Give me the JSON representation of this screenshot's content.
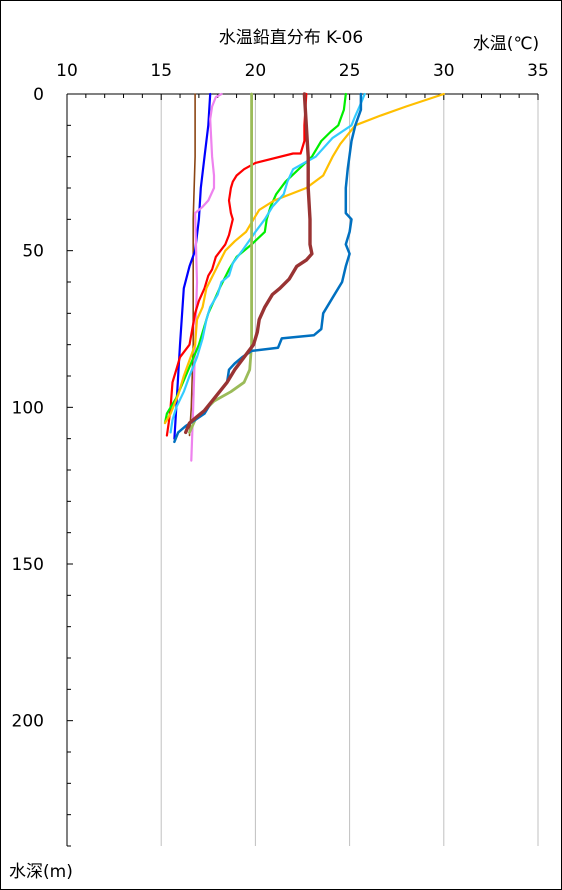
{
  "chart_data": {
    "type": "line",
    "title": "水温鉛直分布 K-06",
    "xlabel": "水温(℃)",
    "ylabel": "水深(m)",
    "xlim": [
      10,
      35
    ],
    "ylim": [
      0,
      240
    ],
    "x_ticks": [
      "10",
      "15",
      "20",
      "25",
      "30",
      "35"
    ],
    "y_ticks": [
      "0",
      "50",
      "100",
      "150",
      "200"
    ],
    "x_axis_position": "top",
    "y_axis_inverted": true,
    "grid": "vertical",
    "legend": "none",
    "series": [
      {
        "color": "#8b4513",
        "stroke": 1.6,
        "points": [
          [
            16.8,
            0
          ],
          [
            16.8,
            20
          ],
          [
            16.7,
            40
          ],
          [
            16.7,
            60
          ],
          [
            16.7,
            80
          ],
          [
            16.6,
            100
          ],
          [
            16.5,
            109
          ]
        ]
      },
      {
        "color": "#0000ff",
        "stroke": 2.2,
        "points": [
          [
            17.6,
            0
          ],
          [
            17.5,
            10
          ],
          [
            17.3,
            20
          ],
          [
            17.1,
            30
          ],
          [
            17.0,
            40
          ],
          [
            16.8,
            50
          ],
          [
            16.5,
            55
          ],
          [
            16.2,
            62
          ],
          [
            16.0,
            80
          ],
          [
            15.8,
            100
          ],
          [
            15.7,
            110
          ]
        ]
      },
      {
        "color": "#ee82ee",
        "stroke": 2.2,
        "points": [
          [
            18.2,
            0
          ],
          [
            17.9,
            1
          ],
          [
            17.7,
            4
          ],
          [
            17.6,
            8
          ],
          [
            17.7,
            20
          ],
          [
            17.8,
            26
          ],
          [
            17.8,
            30
          ],
          [
            17.5,
            34
          ],
          [
            17.2,
            36
          ],
          [
            16.8,
            38
          ],
          [
            16.9,
            60
          ],
          [
            16.8,
            80
          ],
          [
            16.7,
            100
          ],
          [
            16.6,
            117
          ]
        ]
      },
      {
        "color": "#ff0000",
        "stroke": 2.2,
        "points": [
          [
            22.7,
            0
          ],
          [
            22.6,
            10
          ],
          [
            22.6,
            15
          ],
          [
            22.4,
            19
          ],
          [
            22.0,
            19
          ],
          [
            20.0,
            22
          ],
          [
            19.4,
            24
          ],
          [
            19.0,
            26
          ],
          [
            18.8,
            28
          ],
          [
            18.7,
            30
          ],
          [
            18.6,
            34
          ],
          [
            18.7,
            38
          ],
          [
            18.8,
            40
          ],
          [
            18.6,
            45
          ],
          [
            18.4,
            48
          ],
          [
            17.9,
            52
          ],
          [
            17.7,
            56
          ],
          [
            17.5,
            58
          ],
          [
            17.3,
            62
          ],
          [
            17.0,
            66
          ],
          [
            16.8,
            70
          ],
          [
            16.5,
            80
          ],
          [
            16.0,
            84
          ],
          [
            15.8,
            88
          ],
          [
            15.6,
            92
          ],
          [
            15.5,
            100
          ],
          [
            15.4,
            105
          ],
          [
            15.3,
            109
          ]
        ]
      },
      {
        "color": "#00ee00",
        "stroke": 2.2,
        "points": [
          [
            24.8,
            0
          ],
          [
            24.7,
            5
          ],
          [
            24.4,
            10
          ],
          [
            24.0,
            12
          ],
          [
            23.5,
            15
          ],
          [
            23.0,
            20
          ],
          [
            22.3,
            24
          ],
          [
            21.6,
            28
          ],
          [
            21.1,
            32
          ],
          [
            20.8,
            36
          ],
          [
            20.6,
            40
          ],
          [
            20.5,
            44
          ],
          [
            19.8,
            48
          ],
          [
            19.4,
            50
          ],
          [
            19.0,
            52
          ],
          [
            18.6,
            56
          ],
          [
            18.1,
            62
          ],
          [
            17.5,
            70
          ],
          [
            17.0,
            80
          ],
          [
            16.3,
            90
          ],
          [
            15.8,
            97
          ],
          [
            15.3,
            102
          ],
          [
            15.2,
            105
          ]
        ]
      },
      {
        "color": "#ffbf00",
        "stroke": 2.2,
        "points": [
          [
            30.0,
            0
          ],
          [
            28.0,
            4
          ],
          [
            26.6,
            7
          ],
          [
            25.3,
            10
          ],
          [
            24.5,
            16
          ],
          [
            24.1,
            20
          ],
          [
            23.6,
            26
          ],
          [
            22.7,
            30
          ],
          [
            21.0,
            34
          ],
          [
            20.2,
            37
          ],
          [
            19.9,
            40
          ],
          [
            19.5,
            44
          ],
          [
            18.9,
            47
          ],
          [
            18.4,
            50
          ],
          [
            17.9,
            56
          ],
          [
            17.4,
            62
          ],
          [
            17.2,
            68
          ],
          [
            16.9,
            72
          ],
          [
            16.8,
            80
          ],
          [
            16.5,
            85
          ],
          [
            16.2,
            90
          ],
          [
            15.9,
            96
          ],
          [
            15.5,
            102
          ],
          [
            15.2,
            105
          ]
        ]
      },
      {
        "color": "#33ccff",
        "stroke": 2.2,
        "points": [
          [
            25.8,
            0
          ],
          [
            25.6,
            3
          ],
          [
            25.3,
            7
          ],
          [
            25.1,
            10
          ],
          [
            24.1,
            14
          ],
          [
            23.2,
            20
          ],
          [
            22.6,
            22
          ],
          [
            22.0,
            24
          ],
          [
            21.7,
            28
          ],
          [
            21.5,
            32
          ],
          [
            20.9,
            36
          ],
          [
            20.5,
            40
          ],
          [
            20.0,
            44
          ],
          [
            19.3,
            50
          ],
          [
            18.8,
            54
          ],
          [
            18.6,
            58
          ],
          [
            18.2,
            60
          ],
          [
            18.0,
            64
          ],
          [
            17.6,
            68
          ],
          [
            17.4,
            72
          ],
          [
            17.2,
            78
          ],
          [
            16.9,
            84
          ],
          [
            16.5,
            90
          ],
          [
            16.2,
            95
          ],
          [
            15.8,
            100
          ],
          [
            15.6,
            104
          ],
          [
            15.5,
            108
          ]
        ]
      },
      {
        "color": "#9bbb59",
        "stroke": 2.8,
        "points": [
          [
            19.8,
            0
          ],
          [
            19.8,
            20
          ],
          [
            19.8,
            40
          ],
          [
            19.8,
            60
          ],
          [
            19.8,
            80
          ],
          [
            19.7,
            88
          ],
          [
            19.4,
            92
          ],
          [
            18.7,
            95
          ],
          [
            17.8,
            98
          ],
          [
            17.3,
            101
          ],
          [
            16.8,
            104
          ],
          [
            16.5,
            108
          ]
        ]
      },
      {
        "color": "#0070c0",
        "stroke": 2.5,
        "points": [
          [
            25.6,
            0
          ],
          [
            25.6,
            5
          ],
          [
            25.3,
            10
          ],
          [
            25.1,
            15
          ],
          [
            24.9,
            24
          ],
          [
            24.8,
            30
          ],
          [
            24.8,
            38
          ],
          [
            25.1,
            40
          ],
          [
            25.0,
            44
          ],
          [
            24.8,
            48
          ],
          [
            25.0,
            51
          ],
          [
            24.8,
            55
          ],
          [
            24.6,
            60
          ],
          [
            24.1,
            65
          ],
          [
            23.6,
            70
          ],
          [
            23.5,
            75
          ],
          [
            23.1,
            77
          ],
          [
            21.4,
            78
          ],
          [
            21.2,
            81
          ],
          [
            19.8,
            82
          ],
          [
            19.3,
            84
          ],
          [
            18.9,
            86
          ],
          [
            18.6,
            88
          ],
          [
            18.5,
            92
          ],
          [
            18.1,
            95
          ],
          [
            17.7,
            98
          ],
          [
            17.3,
            102
          ],
          [
            16.8,
            104
          ],
          [
            16.3,
            106
          ],
          [
            15.9,
            108
          ],
          [
            15.7,
            111
          ]
        ]
      },
      {
        "color": "#993333",
        "stroke": 3.4,
        "points": [
          [
            22.6,
            0
          ],
          [
            22.7,
            10
          ],
          [
            22.8,
            20
          ],
          [
            22.8,
            30
          ],
          [
            22.9,
            40
          ],
          [
            22.9,
            48
          ],
          [
            23.0,
            51
          ],
          [
            22.7,
            53
          ],
          [
            22.2,
            55
          ],
          [
            21.8,
            59
          ],
          [
            21.3,
            62
          ],
          [
            20.9,
            64
          ],
          [
            20.5,
            68
          ],
          [
            20.2,
            72
          ],
          [
            20.1,
            76
          ],
          [
            19.9,
            80
          ],
          [
            19.4,
            84
          ],
          [
            18.9,
            88
          ],
          [
            18.5,
            92
          ],
          [
            18.1,
            95
          ],
          [
            17.7,
            98
          ],
          [
            17.3,
            101
          ],
          [
            16.9,
            103
          ],
          [
            16.5,
            105
          ],
          [
            16.3,
            108
          ]
        ]
      }
    ]
  }
}
